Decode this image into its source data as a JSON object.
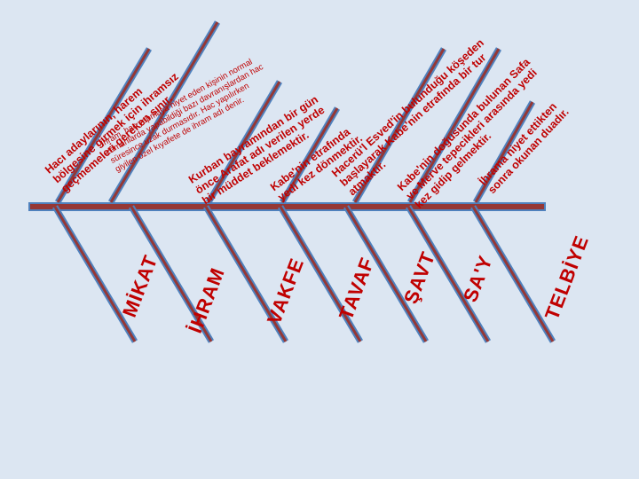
{
  "colors": {
    "background": "#dce6f2",
    "spine_fill": "#953735",
    "spine_border": "#4f81bd",
    "text": "#c00000"
  },
  "branches": [
    {
      "label": "TELBİYE",
      "description": [
        "İhrama niyet ettikten",
        "sonra okunan duadır."
      ]
    },
    {
      "label": "SA'Y",
      "description": [
        "Kabe'nin doğusunda bulunan Safa",
        "ve Merve tepecikleri arasında yedi",
        "kez gidip gelmektir."
      ]
    },
    {
      "label": "ŞAVT",
      "description": [
        "Hacerü'l Esved'in bulunduğu köşeden",
        "başlayarak Kabe'nin etrafında bir tur",
        "atmaktır."
      ]
    },
    {
      "label": "TAVAF",
      "description": [
        "Kabe'nin etrafında",
        "yedi kez dönmektir."
      ]
    },
    {
      "label": "VAKFE",
      "description": [
        "Kurban bayramından bir gün",
        "önce Arafat adı verilen yerde",
        "bir müddet beklemektir."
      ]
    },
    {
      "label": "İHRAM",
      "description": [
        "İhram, hac yapmaya niyet eden kişinin normal",
        "zamanlarda yapabildiği bazı davranışlardan hac",
        "süresince uzak durmasıdır. Hac yapılırken",
        "giyilen özel kıyafete de ihram adı denir."
      ]
    },
    {
      "label": "MİKAT",
      "description": [
        "Hacı adaylarının, harem",
        "bölgesine girmek için ihramsız",
        "geçmemeleri gereken sınır."
      ]
    }
  ]
}
